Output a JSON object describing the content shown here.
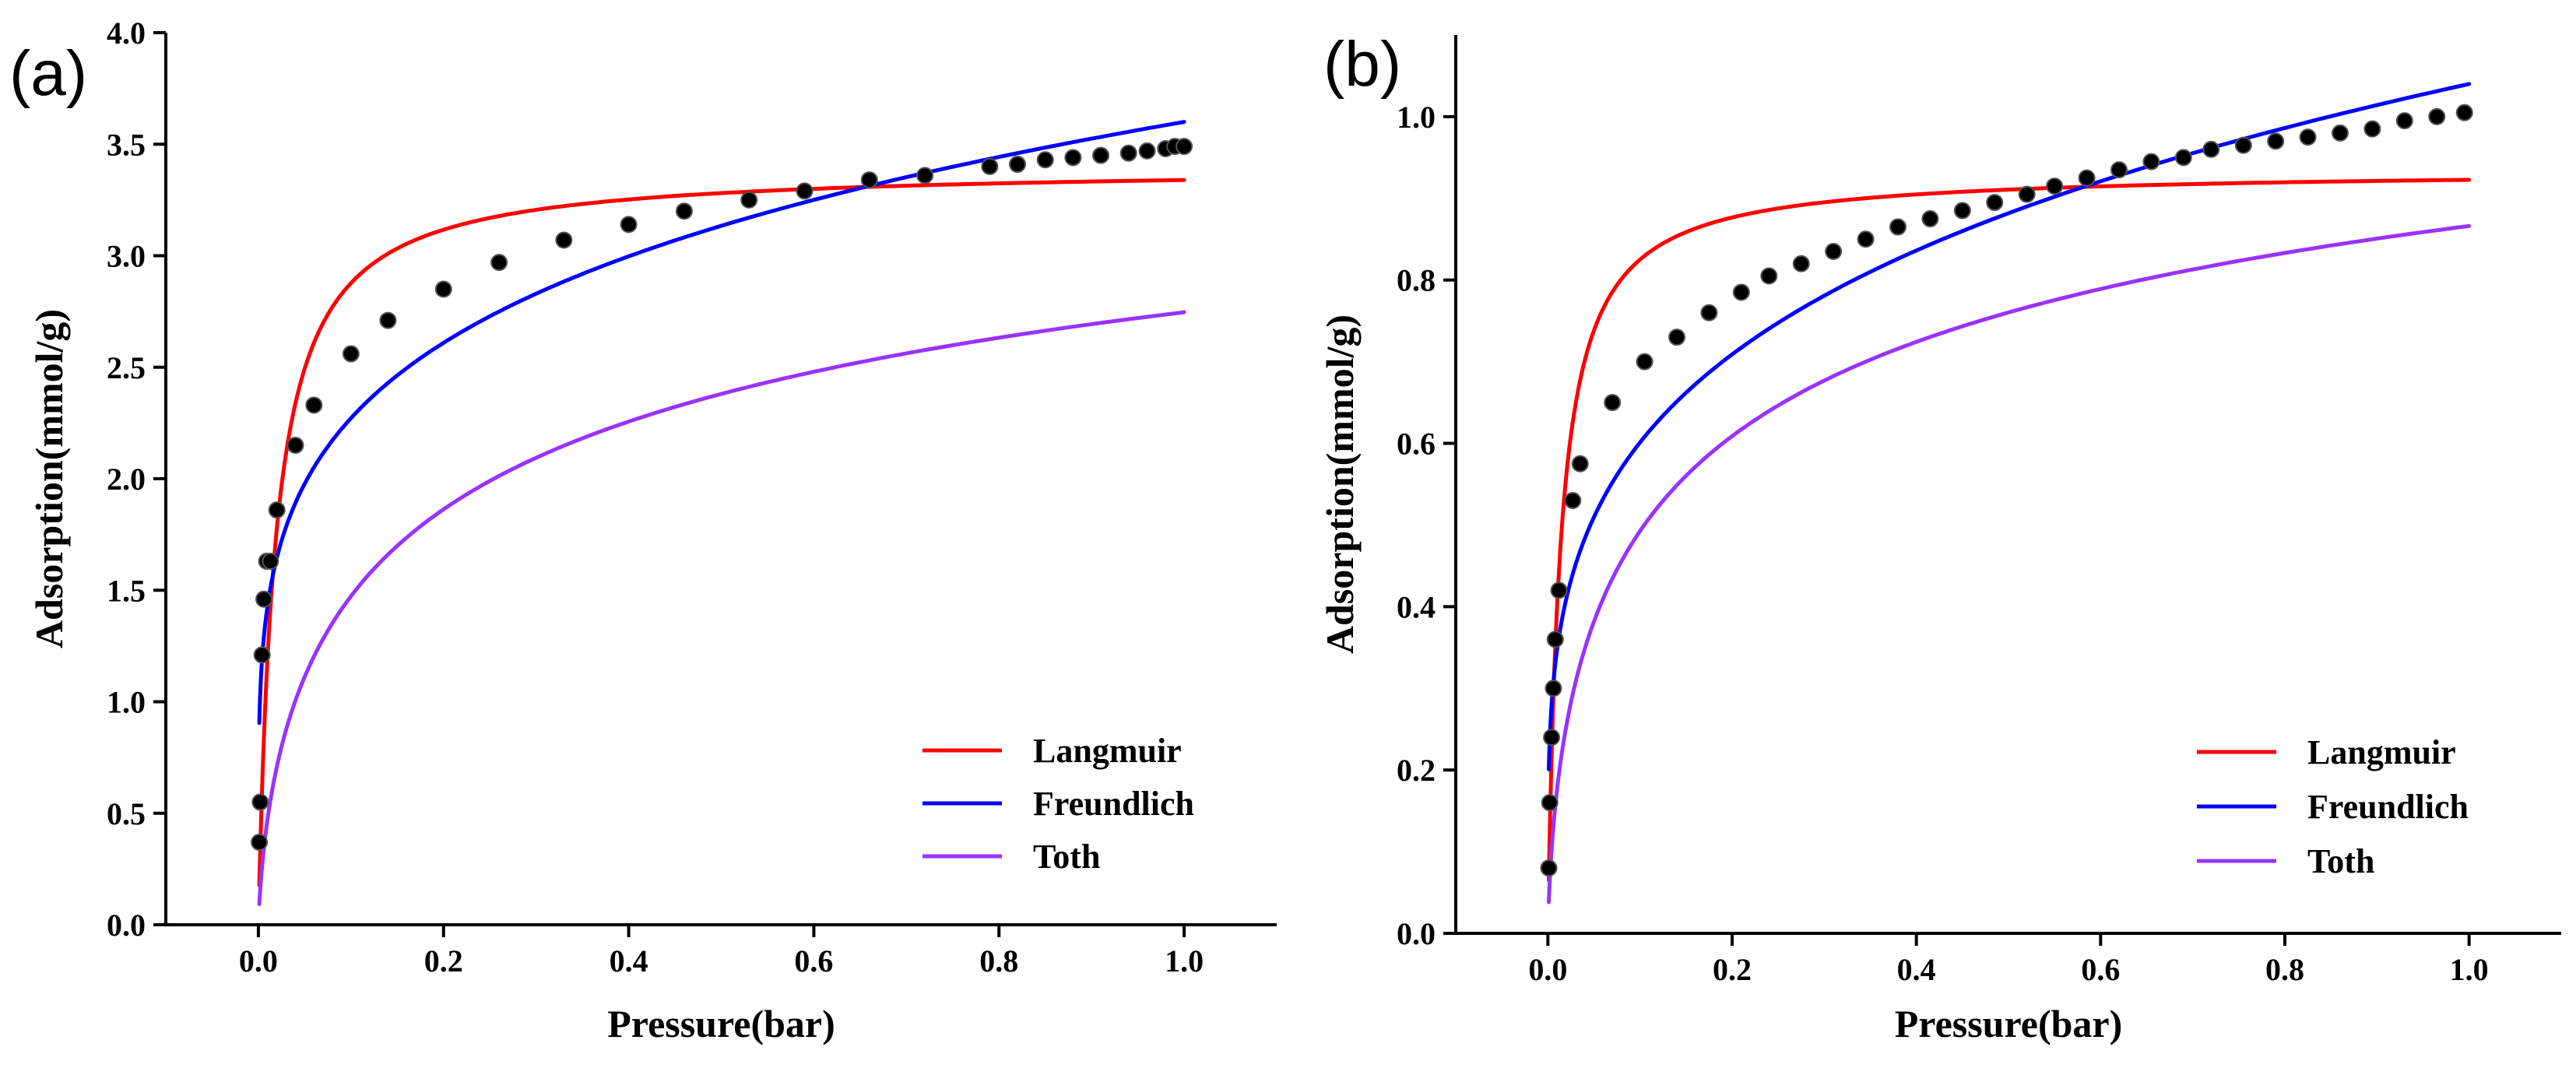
{
  "chart_data": [
    {
      "panel_label": "(a)",
      "type": "line",
      "xlabel": "Pressure(bar)",
      "ylabel": "Adsorption(mmol/g)",
      "xlim": [
        -0.1,
        1.1
      ],
      "ylim": [
        0.0,
        4.0
      ],
      "x_ticks": [
        "0.0",
        "0.2",
        "0.4",
        "0.6",
        "0.8",
        "1.0"
      ],
      "y_ticks": [
        "0.0",
        "0.5",
        "1.0",
        "1.5",
        "2.0",
        "2.5",
        "3.0",
        "3.5",
        "4.0"
      ],
      "legend_position": "bottom-right",
      "series": [
        {
          "name": "Langmuir",
          "color": "#ff0000",
          "model": "langmuir",
          "params": {
            "qm": 3.4,
            "b": 55.0
          }
        },
        {
          "name": "Freundlich",
          "color": "#0000ff",
          "model": "freundlich",
          "params": {
            "k": 3.6,
            "n": 5.0
          }
        },
        {
          "name": "Toth",
          "color": "#9933ff",
          "model": "toth",
          "params": {
            "qm": 4.45,
            "b": 35.0,
            "t": 0.42
          }
        }
      ],
      "data_points": {
        "x": [
          0.001,
          0.002,
          0.004,
          0.006,
          0.009,
          0.013,
          0.02,
          0.04,
          0.06,
          0.1,
          0.14,
          0.2,
          0.26,
          0.33,
          0.4,
          0.46,
          0.53,
          0.59,
          0.66,
          0.72,
          0.79,
          0.82,
          0.85,
          0.88,
          0.91,
          0.94,
          0.96,
          0.98,
          0.99,
          1.0
        ],
        "y": [
          0.37,
          0.55,
          1.21,
          1.46,
          1.63,
          1.63,
          1.86,
          2.15,
          2.33,
          2.56,
          2.71,
          2.85,
          2.97,
          3.07,
          3.14,
          3.2,
          3.25,
          3.29,
          3.34,
          3.36,
          3.4,
          3.41,
          3.43,
          3.44,
          3.45,
          3.46,
          3.47,
          3.48,
          3.49,
          3.49
        ]
      }
    },
    {
      "panel_label": "(b)",
      "type": "line",
      "xlabel": "Pressure(bar)",
      "ylabel": "Adsorption(mmol/g)",
      "xlim": [
        -0.1,
        1.1
      ],
      "ylim": [
        0.0,
        1.1
      ],
      "x_ticks": [
        "0.0",
        "0.2",
        "0.4",
        "0.6",
        "0.8",
        "1.0"
      ],
      "y_ticks": [
        "0.0",
        "0.2",
        "0.4",
        "0.6",
        "0.8",
        "1.0"
      ],
      "legend_position": "bottom-right",
      "series": [
        {
          "name": "Langmuir",
          "color": "#ff0000",
          "model": "langmuir",
          "params": {
            "qm": 0.935,
            "b": 75.0
          }
        },
        {
          "name": "Freundlich",
          "color": "#0000ff",
          "model": "freundlich",
          "params": {
            "k": 1.04,
            "n": 4.2
          }
        },
        {
          "name": "Toth",
          "color": "#9933ff",
          "model": "toth",
          "params": {
            "qm": 1.37,
            "b": 55.0,
            "t": 0.4
          }
        }
      ],
      "data_points": {
        "x": [
          0.001,
          0.002,
          0.004,
          0.006,
          0.008,
          0.012,
          0.027,
          0.035,
          0.07,
          0.105,
          0.14,
          0.175,
          0.21,
          0.24,
          0.275,
          0.31,
          0.345,
          0.38,
          0.415,
          0.45,
          0.485,
          0.52,
          0.55,
          0.585,
          0.62,
          0.655,
          0.69,
          0.72,
          0.755,
          0.79,
          0.825,
          0.86,
          0.895,
          0.93,
          0.965,
          0.995
        ],
        "y": [
          0.08,
          0.16,
          0.24,
          0.3,
          0.36,
          0.42,
          0.53,
          0.575,
          0.65,
          0.7,
          0.73,
          0.76,
          0.785,
          0.805,
          0.82,
          0.835,
          0.85,
          0.865,
          0.875,
          0.885,
          0.895,
          0.905,
          0.915,
          0.925,
          0.935,
          0.945,
          0.95,
          0.96,
          0.965,
          0.97,
          0.975,
          0.98,
          0.985,
          0.995,
          1.0,
          1.005
        ]
      }
    }
  ]
}
